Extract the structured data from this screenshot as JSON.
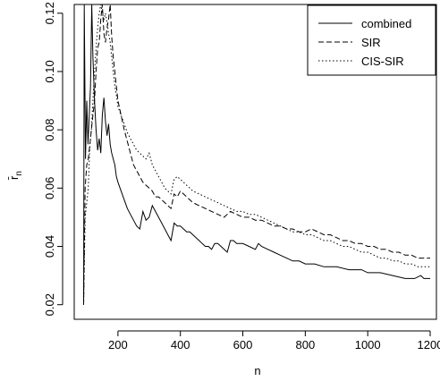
{
  "chart_data": {
    "type": "line",
    "title": "",
    "xlabel": "n",
    "ylabel_main": "r̄",
    "ylabel_sub": "n",
    "xlim": [
      60,
      1220
    ],
    "ylim": [
      0.015,
      0.123
    ],
    "x_ticks": [
      200,
      400,
      600,
      800,
      1000,
      1200
    ],
    "x_tick_labels": [
      "200",
      "400",
      "600",
      "800",
      "1000",
      "1200"
    ],
    "y_ticks": [
      0.02,
      0.04,
      0.06,
      0.08,
      0.1,
      0.12
    ],
    "y_tick_labels": [
      "0.02",
      "0.04",
      "0.06",
      "0.08",
      "0.10",
      "0.12"
    ],
    "grid": false,
    "legend_position": "top-right",
    "series": [
      {
        "name": "combined",
        "dash": "solid",
        "points": [
          [
            90,
            0.02
          ],
          [
            92,
            0.123
          ],
          [
            96,
            0.07
          ],
          [
            100,
            0.09
          ],
          [
            104,
            0.075
          ],
          [
            108,
            0.085
          ],
          [
            112,
            0.095
          ],
          [
            116,
            0.123
          ],
          [
            120,
            0.105
          ],
          [
            125,
            0.09
          ],
          [
            130,
            0.08
          ],
          [
            135,
            0.073
          ],
          [
            140,
            0.077
          ],
          [
            145,
            0.072
          ],
          [
            150,
            0.085
          ],
          [
            155,
            0.091
          ],
          [
            160,
            0.083
          ],
          [
            165,
            0.078
          ],
          [
            170,
            0.082
          ],
          [
            175,
            0.075
          ],
          [
            180,
            0.072
          ],
          [
            185,
            0.07
          ],
          [
            190,
            0.068
          ],
          [
            195,
            0.064
          ],
          [
            200,
            0.062
          ],
          [
            210,
            0.059
          ],
          [
            220,
            0.056
          ],
          [
            230,
            0.053
          ],
          [
            240,
            0.051
          ],
          [
            250,
            0.049
          ],
          [
            260,
            0.047
          ],
          [
            270,
            0.046
          ],
          [
            280,
            0.052
          ],
          [
            290,
            0.049
          ],
          [
            300,
            0.05
          ],
          [
            310,
            0.054
          ],
          [
            320,
            0.052
          ],
          [
            330,
            0.05
          ],
          [
            340,
            0.048
          ],
          [
            350,
            0.046
          ],
          [
            360,
            0.044
          ],
          [
            370,
            0.042
          ],
          [
            380,
            0.048
          ],
          [
            390,
            0.047
          ],
          [
            400,
            0.047
          ],
          [
            410,
            0.046
          ],
          [
            420,
            0.045
          ],
          [
            430,
            0.045
          ],
          [
            440,
            0.044
          ],
          [
            450,
            0.043
          ],
          [
            460,
            0.042
          ],
          [
            470,
            0.041
          ],
          [
            480,
            0.04
          ],
          [
            490,
            0.04
          ],
          [
            500,
            0.039
          ],
          [
            510,
            0.041
          ],
          [
            520,
            0.041
          ],
          [
            530,
            0.04
          ],
          [
            540,
            0.039
          ],
          [
            550,
            0.038
          ],
          [
            560,
            0.042
          ],
          [
            570,
            0.042
          ],
          [
            580,
            0.041
          ],
          [
            600,
            0.041
          ],
          [
            620,
            0.04
          ],
          [
            640,
            0.039
          ],
          [
            650,
            0.041
          ],
          [
            660,
            0.04
          ],
          [
            680,
            0.039
          ],
          [
            700,
            0.038
          ],
          [
            720,
            0.037
          ],
          [
            740,
            0.036
          ],
          [
            760,
            0.035
          ],
          [
            780,
            0.035
          ],
          [
            800,
            0.034
          ],
          [
            830,
            0.034
          ],
          [
            860,
            0.033
          ],
          [
            900,
            0.033
          ],
          [
            940,
            0.032
          ],
          [
            980,
            0.032
          ],
          [
            1000,
            0.031
          ],
          [
            1040,
            0.031
          ],
          [
            1080,
            0.03
          ],
          [
            1120,
            0.029
          ],
          [
            1150,
            0.029
          ],
          [
            1170,
            0.03
          ],
          [
            1180,
            0.029
          ],
          [
            1200,
            0.029
          ]
        ]
      },
      {
        "name": "SIR",
        "dash": "dashed",
        "points": [
          [
            90,
            0.02
          ],
          [
            95,
            0.06
          ],
          [
            100,
            0.068
          ],
          [
            105,
            0.07
          ],
          [
            110,
            0.075
          ],
          [
            115,
            0.08
          ],
          [
            120,
            0.085
          ],
          [
            125,
            0.09
          ],
          [
            130,
            0.1
          ],
          [
            135,
            0.108
          ],
          [
            140,
            0.11
          ],
          [
            145,
            0.118
          ],
          [
            150,
            0.123
          ],
          [
            155,
            0.113
          ],
          [
            160,
            0.11
          ],
          [
            165,
            0.115
          ],
          [
            170,
            0.118
          ],
          [
            175,
            0.123
          ],
          [
            180,
            0.112
          ],
          [
            185,
            0.105
          ],
          [
            190,
            0.1
          ],
          [
            195,
            0.095
          ],
          [
            200,
            0.09
          ],
          [
            210,
            0.085
          ],
          [
            220,
            0.08
          ],
          [
            230,
            0.076
          ],
          [
            240,
            0.072
          ],
          [
            250,
            0.068
          ],
          [
            260,
            0.066
          ],
          [
            270,
            0.064
          ],
          [
            280,
            0.062
          ],
          [
            290,
            0.061
          ],
          [
            300,
            0.06
          ],
          [
            310,
            0.059
          ],
          [
            320,
            0.057
          ],
          [
            330,
            0.057
          ],
          [
            340,
            0.056
          ],
          [
            350,
            0.055
          ],
          [
            360,
            0.054
          ],
          [
            370,
            0.053
          ],
          [
            380,
            0.058
          ],
          [
            390,
            0.057
          ],
          [
            400,
            0.059
          ],
          [
            410,
            0.058
          ],
          [
            420,
            0.057
          ],
          [
            430,
            0.056
          ],
          [
            440,
            0.055
          ],
          [
            460,
            0.054
          ],
          [
            480,
            0.053
          ],
          [
            500,
            0.052
          ],
          [
            520,
            0.051
          ],
          [
            540,
            0.05
          ],
          [
            560,
            0.052
          ],
          [
            580,
            0.051
          ],
          [
            600,
            0.05
          ],
          [
            620,
            0.05
          ],
          [
            640,
            0.049
          ],
          [
            660,
            0.049
          ],
          [
            680,
            0.048
          ],
          [
            700,
            0.047
          ],
          [
            720,
            0.047
          ],
          [
            740,
            0.046
          ],
          [
            760,
            0.046
          ],
          [
            780,
            0.045
          ],
          [
            800,
            0.045
          ],
          [
            820,
            0.046
          ],
          [
            840,
            0.045
          ],
          [
            860,
            0.044
          ],
          [
            880,
            0.044
          ],
          [
            900,
            0.043
          ],
          [
            920,
            0.042
          ],
          [
            940,
            0.042
          ],
          [
            960,
            0.041
          ],
          [
            980,
            0.041
          ],
          [
            1000,
            0.04
          ],
          [
            1020,
            0.04
          ],
          [
            1040,
            0.039
          ],
          [
            1060,
            0.039
          ],
          [
            1080,
            0.038
          ],
          [
            1100,
            0.038
          ],
          [
            1120,
            0.037
          ],
          [
            1140,
            0.037
          ],
          [
            1160,
            0.036
          ],
          [
            1180,
            0.036
          ],
          [
            1200,
            0.036
          ]
        ]
      },
      {
        "name": "CIS-SIR",
        "dash": "dotted",
        "points": [
          [
            90,
            0.02
          ],
          [
            95,
            0.05
          ],
          [
            100,
            0.055
          ],
          [
            105,
            0.06
          ],
          [
            110,
            0.075
          ],
          [
            115,
            0.08
          ],
          [
            120,
            0.09
          ],
          [
            125,
            0.1
          ],
          [
            130,
            0.108
          ],
          [
            135,
            0.115
          ],
          [
            140,
            0.12
          ],
          [
            145,
            0.123
          ],
          [
            150,
            0.12
          ],
          [
            155,
            0.118
          ],
          [
            160,
            0.12
          ],
          [
            165,
            0.117
          ],
          [
            170,
            0.113
          ],
          [
            175,
            0.11
          ],
          [
            180,
            0.105
          ],
          [
            185,
            0.1
          ],
          [
            190,
            0.095
          ],
          [
            195,
            0.092
          ],
          [
            200,
            0.088
          ],
          [
            210,
            0.085
          ],
          [
            220,
            0.082
          ],
          [
            230,
            0.079
          ],
          [
            240,
            0.077
          ],
          [
            250,
            0.075
          ],
          [
            260,
            0.073
          ],
          [
            270,
            0.072
          ],
          [
            280,
            0.071
          ],
          [
            290,
            0.07
          ],
          [
            300,
            0.072
          ],
          [
            310,
            0.068
          ],
          [
            320,
            0.066
          ],
          [
            330,
            0.064
          ],
          [
            340,
            0.062
          ],
          [
            350,
            0.06
          ],
          [
            360,
            0.059
          ],
          [
            370,
            0.058
          ],
          [
            380,
            0.063
          ],
          [
            390,
            0.064
          ],
          [
            400,
            0.063
          ],
          [
            410,
            0.062
          ],
          [
            420,
            0.061
          ],
          [
            430,
            0.06
          ],
          [
            440,
            0.059
          ],
          [
            460,
            0.058
          ],
          [
            480,
            0.057
          ],
          [
            500,
            0.056
          ],
          [
            520,
            0.055
          ],
          [
            540,
            0.054
          ],
          [
            560,
            0.053
          ],
          [
            580,
            0.052
          ],
          [
            600,
            0.052
          ],
          [
            620,
            0.051
          ],
          [
            640,
            0.051
          ],
          [
            660,
            0.05
          ],
          [
            680,
            0.049
          ],
          [
            700,
            0.048
          ],
          [
            720,
            0.047
          ],
          [
            740,
            0.046
          ],
          [
            760,
            0.045
          ],
          [
            780,
            0.045
          ],
          [
            800,
            0.044
          ],
          [
            820,
            0.044
          ],
          [
            840,
            0.043
          ],
          [
            860,
            0.042
          ],
          [
            880,
            0.042
          ],
          [
            900,
            0.041
          ],
          [
            920,
            0.04
          ],
          [
            940,
            0.04
          ],
          [
            960,
            0.039
          ],
          [
            980,
            0.038
          ],
          [
            1000,
            0.038
          ],
          [
            1020,
            0.037
          ],
          [
            1040,
            0.036
          ],
          [
            1060,
            0.036
          ],
          [
            1080,
            0.035
          ],
          [
            1100,
            0.035
          ],
          [
            1120,
            0.034
          ],
          [
            1140,
            0.034
          ],
          [
            1160,
            0.033
          ],
          [
            1180,
            0.033
          ],
          [
            1200,
            0.033
          ]
        ]
      }
    ]
  }
}
